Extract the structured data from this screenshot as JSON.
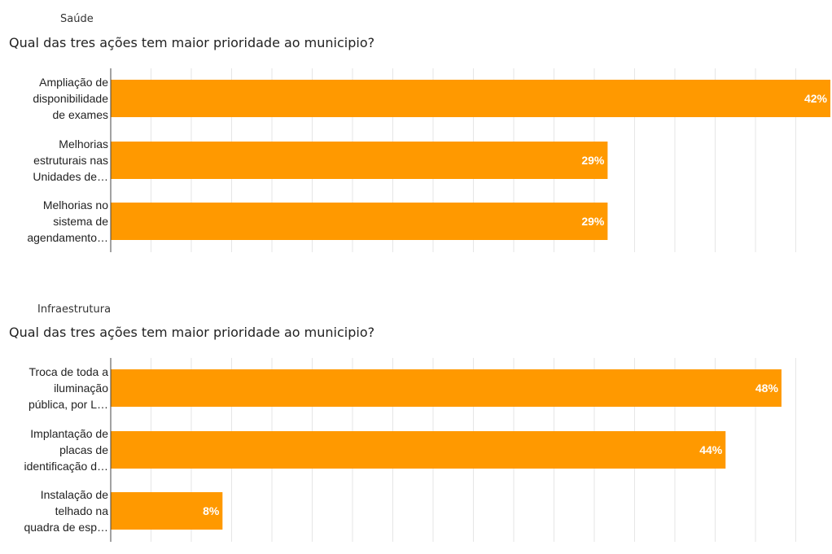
{
  "colors": {
    "bar": "#ff9900",
    "grid": "#e6e6e6",
    "axis": "#444444"
  },
  "chart_data": [
    {
      "type": "bar",
      "orientation": "horizontal",
      "section": "Saúde",
      "title": "Qual das tres ações tem maior prioridade ao municipio?",
      "categories": [
        [
          "Ampliação de",
          "disponibilidade",
          "de exames"
        ],
        [
          "Melhorias",
          "estruturais nas",
          "Unidades de…"
        ],
        [
          "Melhorias no",
          "sistema de",
          "agendamento…"
        ]
      ],
      "values": [
        42,
        29,
        29
      ],
      "value_labels": [
        "42%",
        "29%",
        "29%"
      ],
      "xlim": [
        0,
        42
      ],
      "grid": true
    },
    {
      "type": "bar",
      "orientation": "horizontal",
      "section": "Infraestrutura",
      "title": "Qual das tres ações tem maior prioridade ao municipio?",
      "categories": [
        [
          "Troca de toda a",
          "iluminação",
          "pública, por L…"
        ],
        [
          "Implantação de",
          "placas de",
          "identificação d…"
        ],
        [
          "Instalação de",
          "telhado na",
          "quadra de esp…"
        ]
      ],
      "values": [
        48,
        44,
        8
      ],
      "value_labels": [
        "48%",
        "44%",
        "8%"
      ],
      "xlim": [
        0,
        51.5
      ],
      "grid": true
    }
  ]
}
